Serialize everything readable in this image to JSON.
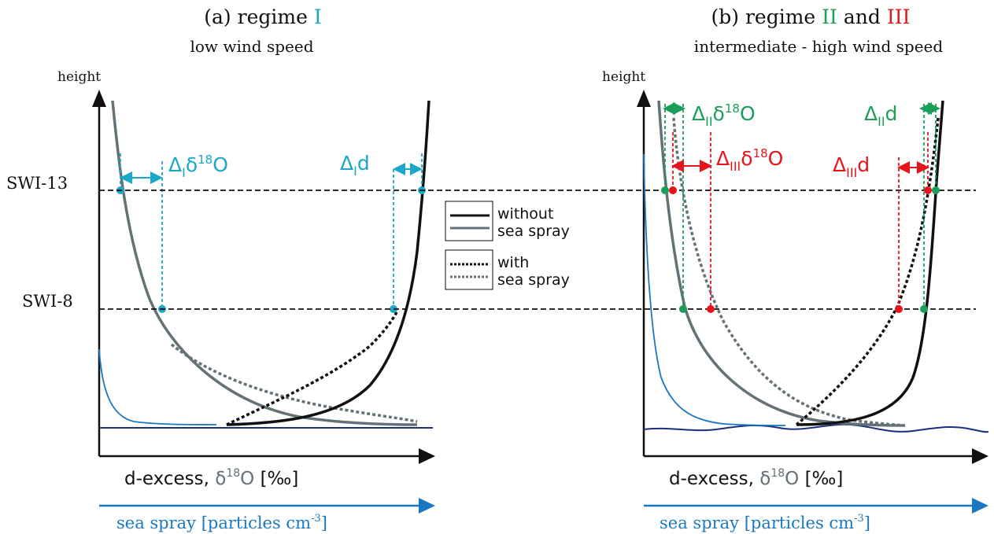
{
  "panel_a": {
    "title": "(a) regime ",
    "title_regime": "I",
    "subtitle": "low wind speed",
    "ylabel": "height",
    "xlabel_prefix": "d-excess, ",
    "xlabel_delta": "δ",
    "xlabel_sup": "18",
    "xlabel_O": "O",
    "xlabel_unit": " [‰]",
    "spray_label": "sea spray [particles cm",
    "spray_sup": "-3",
    "spray_close": "]",
    "delta_o18": {
      "delta": "Δ",
      "sub": "I",
      "d18": "δ",
      "sup": "18",
      "o": "O"
    },
    "delta_d": {
      "delta": "Δ",
      "sub": "I",
      "d": "d"
    }
  },
  "panel_b": {
    "title": "(b) regime ",
    "title_regime_2": "II",
    "title_and": " and ",
    "title_regime_3": "III",
    "subtitle": "intermediate - high wind speed",
    "ylabel": "height",
    "xlabel_prefix": "d-excess, ",
    "xlabel_delta": "δ",
    "xlabel_sup": "18",
    "xlabel_O": "O",
    "xlabel_unit": " [‰]",
    "spray_label": "sea spray [particles cm",
    "spray_sup": "-3",
    "spray_close": "]",
    "delta_ii_o18": {
      "delta": "Δ",
      "sub": "II",
      "d18": "δ",
      "sup": "18",
      "o": "O"
    },
    "delta_ii_d": {
      "delta": "Δ",
      "sub": "II",
      "d": "d"
    },
    "delta_iii_o18": {
      "delta": "Δ",
      "sub": "III",
      "d18": "δ",
      "sup": "18",
      "o": "O"
    },
    "delta_iii_d": {
      "delta": "Δ",
      "sub": "III",
      "d": "d"
    }
  },
  "levels": {
    "swi13": "SWI-13",
    "swi8": "SWI-8"
  },
  "legend": {
    "without_1": "without",
    "without_2": "sea spray",
    "with_1": "with",
    "with_2": "sea spray"
  },
  "colors": {
    "cyan": "#1aa7c8",
    "green": "#1a9e5a",
    "red": "#e8141c",
    "gray": "#647278",
    "black": "#111111",
    "blue": "#1a78c2",
    "navy": "#1c2f7a"
  }
}
